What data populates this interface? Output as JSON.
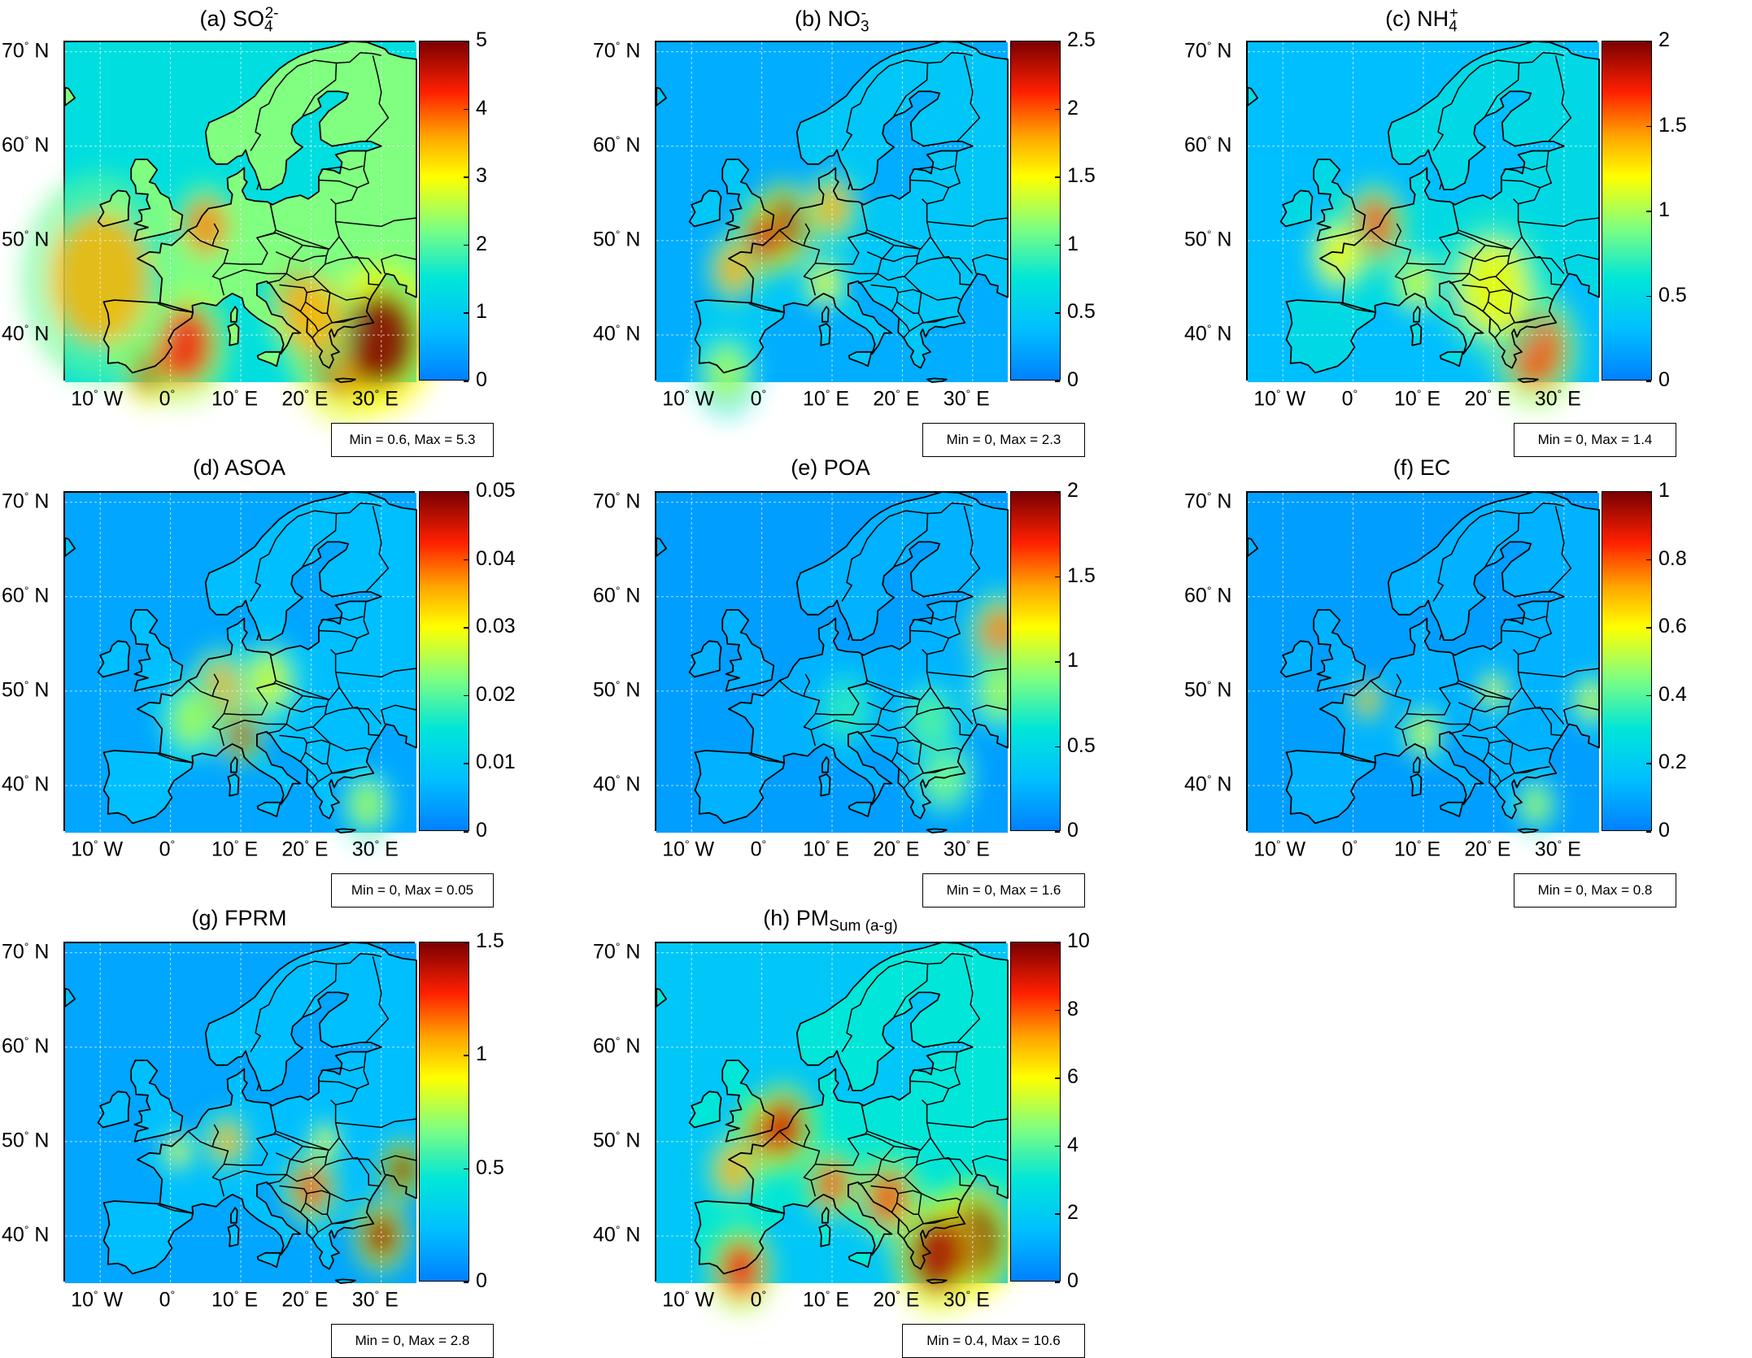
{
  "lat_labels": [
    {
      "value": 70,
      "text": "70",
      "hemi": "N"
    },
    {
      "value": 60,
      "text": "60",
      "hemi": "N"
    },
    {
      "value": 50,
      "text": "50",
      "hemi": "N"
    },
    {
      "value": 40,
      "text": "40",
      "hemi": "N"
    }
  ],
  "lon_labels": [
    {
      "value": -10,
      "text": "10",
      "hemi": "W"
    },
    {
      "value": 0,
      "text": "0",
      "hemi": ""
    },
    {
      "value": 10,
      "text": "10",
      "hemi": "E"
    },
    {
      "value": 20,
      "text": "20",
      "hemi": "E"
    },
    {
      "value": 30,
      "text": "30",
      "hemi": "E"
    }
  ],
  "lon_range": [
    -15,
    35
  ],
  "lat_range": [
    35,
    71
  ],
  "degree_symbol": "°",
  "colormap": "jet",
  "colors": {
    "ocean": "#2290f0",
    "land_low": "#33c7f0",
    "coastline": "#000000"
  },
  "panels": [
    {
      "id": "a",
      "label": "(a) SO",
      "sub": "4",
      "sup": "2-",
      "cbar_ticks": [
        "0",
        "1",
        "2",
        "3",
        "4",
        "5"
      ],
      "cbar_max": 5,
      "min": 0.6,
      "max": 5.3,
      "minmax_text": "Min = 0.6, Max = 5.3",
      "background_level": 0.45
    },
    {
      "id": "b",
      "label": "(b) NO",
      "sub": "3",
      "sup": "-",
      "cbar_ticks": [
        "0",
        "0.5",
        "1",
        "1.5",
        "2",
        "2.5"
      ],
      "cbar_max": 2.5,
      "min": 0,
      "max": 2.3,
      "minmax_text": "Min = 0, Max = 2.3",
      "background_level": 0.18
    },
    {
      "id": "c",
      "label": "(c) NH",
      "sub": "4",
      "sup": "+",
      "cbar_ticks": [
        "0",
        "0.5",
        "1",
        "1.5",
        "2"
      ],
      "cbar_max": 2,
      "min": 0,
      "max": 1.4,
      "minmax_text": "Min = 0, Max = 1.4",
      "background_level": 0.25
    },
    {
      "id": "d",
      "label": "(d) ASOA",
      "sub": "",
      "sup": "",
      "cbar_ticks": [
        "0",
        "0.01",
        "0.02",
        "0.03",
        "0.04",
        "0.05"
      ],
      "cbar_max": 0.05,
      "min": 0,
      "max": 0.05,
      "minmax_text": "Min = 0, Max = 0.05",
      "background_level": 0.15
    },
    {
      "id": "e",
      "label": "(e) POA",
      "sub": "",
      "sup": "",
      "cbar_ticks": [
        "0",
        "0.5",
        "1",
        "1.5",
        "2"
      ],
      "cbar_max": 2,
      "min": 0,
      "max": 1.6,
      "minmax_text": "Min = 0, Max = 1.6",
      "background_level": 0.12
    },
    {
      "id": "f",
      "label": "(f) EC",
      "sub": "",
      "sup": "",
      "cbar_ticks": [
        "0",
        "0.2",
        "0.4",
        "0.6",
        "0.8",
        "1"
      ],
      "cbar_max": 1,
      "min": 0,
      "max": 0.8,
      "minmax_text": "Min = 0, Max = 0.8",
      "background_level": 0.12
    },
    {
      "id": "g",
      "label": "(g) FPRM",
      "sub": "",
      "sup": "",
      "cbar_ticks": [
        "0",
        "0.5",
        "1",
        "1.5"
      ],
      "cbar_max": 1.5,
      "min": 0,
      "max": 2.8,
      "minmax_text": "Min = 0, Max = 2.8",
      "background_level": 0.15
    },
    {
      "id": "h",
      "label": "(h) PM",
      "sub": "Sum (a-g)",
      "sup": "",
      "cbar_ticks": [
        "0",
        "2",
        "4",
        "6",
        "8",
        "10"
      ],
      "cbar_max": 10,
      "min": 0.4,
      "max": 10.6,
      "minmax_text": "Min = 0.4, Max = 10.6",
      "background_level": 0.3
    }
  ]
}
